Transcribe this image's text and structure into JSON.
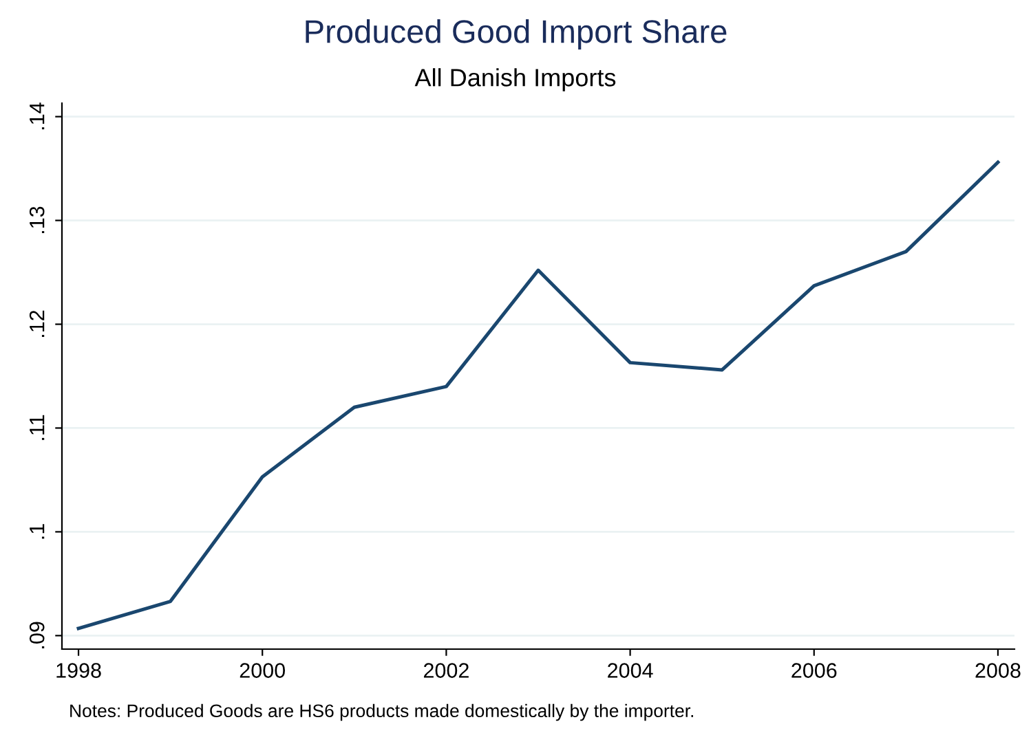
{
  "chart_data": {
    "type": "line",
    "title": "Produced Good Import Share",
    "subtitle": "All Danish Imports",
    "x": [
      1998,
      1999,
      2000,
      2001,
      2002,
      2003,
      2004,
      2005,
      2006,
      2007,
      2008
    ],
    "series": [
      {
        "color": "#1a476f",
        "values": [
          0.0907,
          0.0933,
          0.1053,
          0.112,
          0.114,
          0.1252,
          0.1163,
          0.1156,
          0.1237,
          0.127,
          0.1356
        ]
      }
    ],
    "xlim": [
      1997.82,
      2008.18
    ],
    "xticks": [
      1998,
      2000,
      2002,
      2004,
      2006,
      2008
    ],
    "ylim": [
      0.0887,
      0.1413
    ],
    "yticks": [
      {
        "value": 0.09,
        "label": ".09"
      },
      {
        "value": 0.1,
        "label": ".1"
      },
      {
        "value": 0.11,
        "label": ".11"
      },
      {
        "value": 0.12,
        "label": ".12"
      },
      {
        "value": 0.13,
        "label": ".13"
      },
      {
        "value": 0.14,
        "label": ".14"
      }
    ],
    "grid": "y",
    "legend": false,
    "marker": "none",
    "line_style": "solid",
    "annotations": [
      "Notes: Produced Goods are HS6 products made domestically by the importer."
    ]
  }
}
